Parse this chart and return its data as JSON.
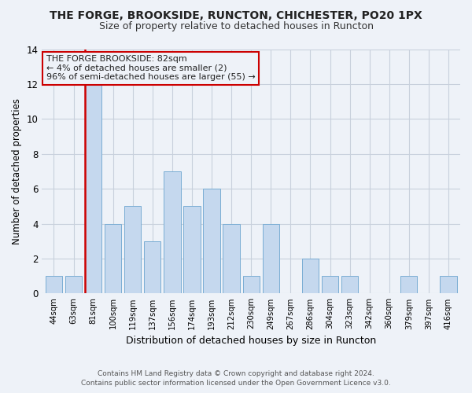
{
  "title": "THE FORGE, BROOKSIDE, RUNCTON, CHICHESTER, PO20 1PX",
  "subtitle": "Size of property relative to detached houses in Runcton",
  "xlabel": "Distribution of detached houses by size in Runcton",
  "ylabel": "Number of detached properties",
  "categories": [
    "44sqm",
    "63sqm",
    "81sqm",
    "100sqm",
    "119sqm",
    "137sqm",
    "156sqm",
    "174sqm",
    "193sqm",
    "212sqm",
    "230sqm",
    "249sqm",
    "267sqm",
    "286sqm",
    "304sqm",
    "323sqm",
    "342sqm",
    "360sqm",
    "379sqm",
    "397sqm",
    "416sqm"
  ],
  "values": [
    1,
    1,
    12,
    4,
    5,
    3,
    7,
    5,
    6,
    4,
    1,
    4,
    0,
    2,
    1,
    1,
    0,
    0,
    1,
    0,
    1
  ],
  "highlight_index": 2,
  "bar_color": "#c5d8ee",
  "bar_edge_color": "#7aadd4",
  "highlight_line_color": "#cc0000",
  "ylim": [
    0,
    14
  ],
  "yticks": [
    0,
    2,
    4,
    6,
    8,
    10,
    12,
    14
  ],
  "annotation_title": "THE FORGE BROOKSIDE: 82sqm",
  "annotation_line1": "← 4% of detached houses are smaller (2)",
  "annotation_line2": "96% of semi-detached houses are larger (55) →",
  "footer_line1": "Contains HM Land Registry data © Crown copyright and database right 2024.",
  "footer_line2": "Contains public sector information licensed under the Open Government Licence v3.0.",
  "bg_color": "#eef2f8",
  "ann_box_color": "#cc0000",
  "grid_color": "#c8d0dc"
}
